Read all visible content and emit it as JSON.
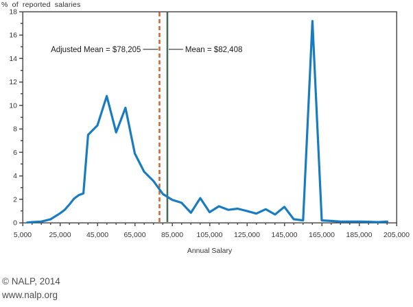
{
  "figure": {
    "y_axis_caption": "% of reported salaries",
    "x_axis_title": "Annual Salary",
    "footer": {
      "copyright": "© NALP, 2014",
      "website": "www.nalp.org"
    }
  },
  "chart_data": {
    "type": "line",
    "title": "",
    "xlabel": "Annual Salary",
    "ylabel": "% of reported salaries",
    "xlim": [
      5000,
      205000
    ],
    "ylim": [
      0,
      18
    ],
    "x_major_tick_step": 20000,
    "x_minor_tick_step": 5000,
    "y_major_tick_step": 2,
    "y_minor_tick_step": 1,
    "grid": false,
    "legend": "none",
    "series": [
      {
        "name": "percent-of-reported-salaries",
        "color": "#1a7cc0",
        "x": [
          7500,
          10000,
          15000,
          20000,
          25000,
          27500,
          30000,
          32500,
          35000,
          37500,
          40000,
          45000,
          50000,
          55000,
          60000,
          65000,
          70000,
          75000,
          80000,
          85000,
          90000,
          95000,
          100000,
          105000,
          110000,
          115000,
          120000,
          125000,
          130000,
          135000,
          140000,
          145000,
          150000,
          155000,
          160000,
          165000,
          170000,
          175000,
          180000,
          185000,
          190000,
          195000,
          200000
        ],
        "y": [
          0.02,
          0.05,
          0.1,
          0.3,
          0.8,
          1.1,
          1.55,
          2.05,
          2.35,
          2.5,
          7.5,
          8.3,
          10.8,
          7.7,
          9.8,
          5.9,
          4.35,
          3.55,
          2.45,
          1.95,
          1.7,
          0.85,
          2.1,
          0.9,
          1.4,
          1.1,
          1.2,
          1.0,
          0.78,
          1.15,
          0.7,
          1.35,
          0.3,
          0.2,
          17.2,
          0.2,
          0.15,
          0.1,
          0.1,
          0.1,
          0.08,
          0.05,
          0.1
        ]
      }
    ],
    "annotations": [
      {
        "id": "adjusted-mean",
        "label": "Adjusted Mean = $78,205",
        "value": 78205,
        "line_style": "dashed",
        "color": "#d2693a",
        "label_side": "left"
      },
      {
        "id": "mean",
        "label": "Mean = $82,408",
        "value": 82408,
        "line_style": "solid",
        "color": "#466e55",
        "label_side": "right"
      }
    ],
    "axis_color": "#4d4d4d",
    "tick_label_color": "#333333"
  }
}
